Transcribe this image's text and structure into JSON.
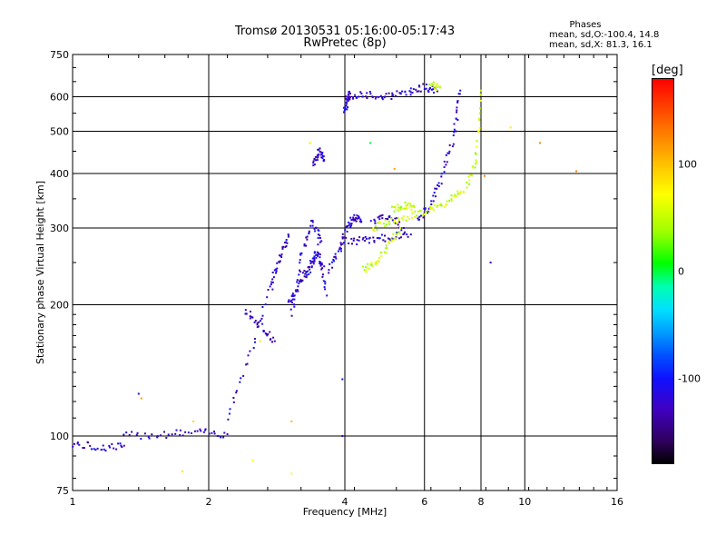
{
  "chart_data": {
    "type": "scatter",
    "title": "Tromsø 20130531 05:16:00-05:17:43",
    "subtitle": "RwPretec (8p)",
    "xlabel": "Frequency [MHz]",
    "ylabel": "Stationary phase Virtual Height [km]",
    "x_scale": "log2",
    "y_scale": "log",
    "xlim": [
      1,
      16
    ],
    "ylim": [
      75,
      750
    ],
    "x_ticks": [
      "1",
      "2",
      "4",
      "6",
      "8",
      "10",
      "16"
    ],
    "y_ticks": [
      "75",
      "100",
      "200",
      "300",
      "400",
      "500",
      "600",
      "750"
    ],
    "grid": true,
    "phases_box": {
      "title": "Phases",
      "o_line": "mean, sd,O:-100.4, 14.8",
      "x_line": "mean, sd,X:  81.3, 16.1"
    },
    "colorbar": {
      "label": "[deg]",
      "ticks": [
        "100",
        "0",
        "-100"
      ],
      "range": [
        -180,
        180
      ]
    },
    "series": [
      {
        "phase": -115,
        "segments": [
          {
            "x": [
              1.0,
              1.15,
              1.3
            ],
            "y": [
              96,
              94,
              95
            ]
          },
          {
            "x": [
              1.3,
              1.6,
              1.9,
              2.2
            ],
            "y": [
              100,
              101,
              102,
              101
            ]
          },
          {
            "x": [
              2.2,
              2.5,
              2.8
            ],
            "y": [
              110,
              160,
              240
            ]
          },
          {
            "x": [
              2.4,
              2.6,
              2.8
            ],
            "y": [
              195,
              180,
              165
            ]
          },
          {
            "x": [
              3.0,
              3.15,
              3.3,
              3.45,
              3.6
            ],
            "y": [
              200,
              220,
              240,
              260,
              245
            ]
          },
          {
            "x": [
              3.05,
              3.2,
              3.4,
              3.55
            ],
            "y": [
              190,
              260,
              310,
              280
            ]
          },
          {
            "x": [
              3.3,
              3.5,
              3.65
            ],
            "y": [
              230,
              270,
              210
            ]
          },
          {
            "x": [
              3.4,
              3.5,
              3.6
            ],
            "y": [
              420,
              450,
              430
            ]
          },
          {
            "x": [
              3.7,
              3.9,
              4.05,
              4.2,
              4.35
            ],
            "y": [
              240,
              270,
              300,
              320,
              310
            ]
          },
          {
            "x": [
              4.1,
              4.5,
              5.0,
              5.6
            ],
            "y": [
              280,
              282,
              285,
              290
            ]
          },
          {
            "x": [
              4.0,
              4.05,
              4.1
            ],
            "y": [
              560,
              590,
              610
            ]
          },
          {
            "x": [
              4.1,
              4.5,
              5.0,
              5.5,
              6.0,
              6.4
            ],
            "y": [
              600,
              605,
              600,
              615,
              630,
              620
            ]
          },
          {
            "x": [
              5.8,
              6.2,
              6.6,
              7.0,
              7.2
            ],
            "y": [
              310,
              340,
              400,
              500,
              620
            ]
          },
          {
            "x": [
              4.6,
              5.0,
              5.4
            ],
            "y": [
              310,
              320,
              300
            ]
          },
          {
            "x": [
              2.75,
              2.9,
              3.0
            ],
            "y": [
              220,
              260,
              290
            ]
          }
        ]
      },
      {
        "phase": 80,
        "segments": [
          {
            "x": [
              4.4,
              4.7,
              5.0,
              5.3
            ],
            "y": [
              240,
              250,
              275,
              300
            ]
          },
          {
            "x": [
              4.6,
              5.0,
              5.6,
              6.2,
              6.8,
              7.4,
              7.8,
              8.0
            ],
            "y": [
              300,
              310,
              320,
              330,
              345,
              370,
              430,
              620
            ]
          },
          {
            "x": [
              5.1,
              5.4,
              5.7
            ],
            "y": [
              330,
              338,
              335
            ]
          },
          {
            "x": [
              6.2,
              6.5
            ],
            "y": [
              640,
              630
            ]
          }
        ]
      }
    ],
    "scattered_points": [
      {
        "x": 1.4,
        "y": 125,
        "phase": -110
      },
      {
        "x": 1.42,
        "y": 122,
        "phase": 140
      },
      {
        "x": 1.75,
        "y": 83,
        "phase": 110
      },
      {
        "x": 1.85,
        "y": 108,
        "phase": 120
      },
      {
        "x": 2.5,
        "y": 88,
        "phase": 100
      },
      {
        "x": 2.6,
        "y": 165,
        "phase": 110
      },
      {
        "x": 3.05,
        "y": 108,
        "phase": 130
      },
      {
        "x": 3.05,
        "y": 82,
        "phase": 100
      },
      {
        "x": 3.35,
        "y": 470,
        "phase": 110
      },
      {
        "x": 3.95,
        "y": 135,
        "phase": -100
      },
      {
        "x": 3.95,
        "y": 100,
        "phase": -120
      },
      {
        "x": 4.55,
        "y": 470,
        "phase": 20
      },
      {
        "x": 5.15,
        "y": 410,
        "phase": 140
      },
      {
        "x": 8.15,
        "y": 395,
        "phase": 150
      },
      {
        "x": 8.4,
        "y": 250,
        "phase": -110
      },
      {
        "x": 9.3,
        "y": 510,
        "phase": 110
      },
      {
        "x": 10.8,
        "y": 470,
        "phase": 150
      },
      {
        "x": 13.0,
        "y": 405,
        "phase": 150
      }
    ]
  }
}
